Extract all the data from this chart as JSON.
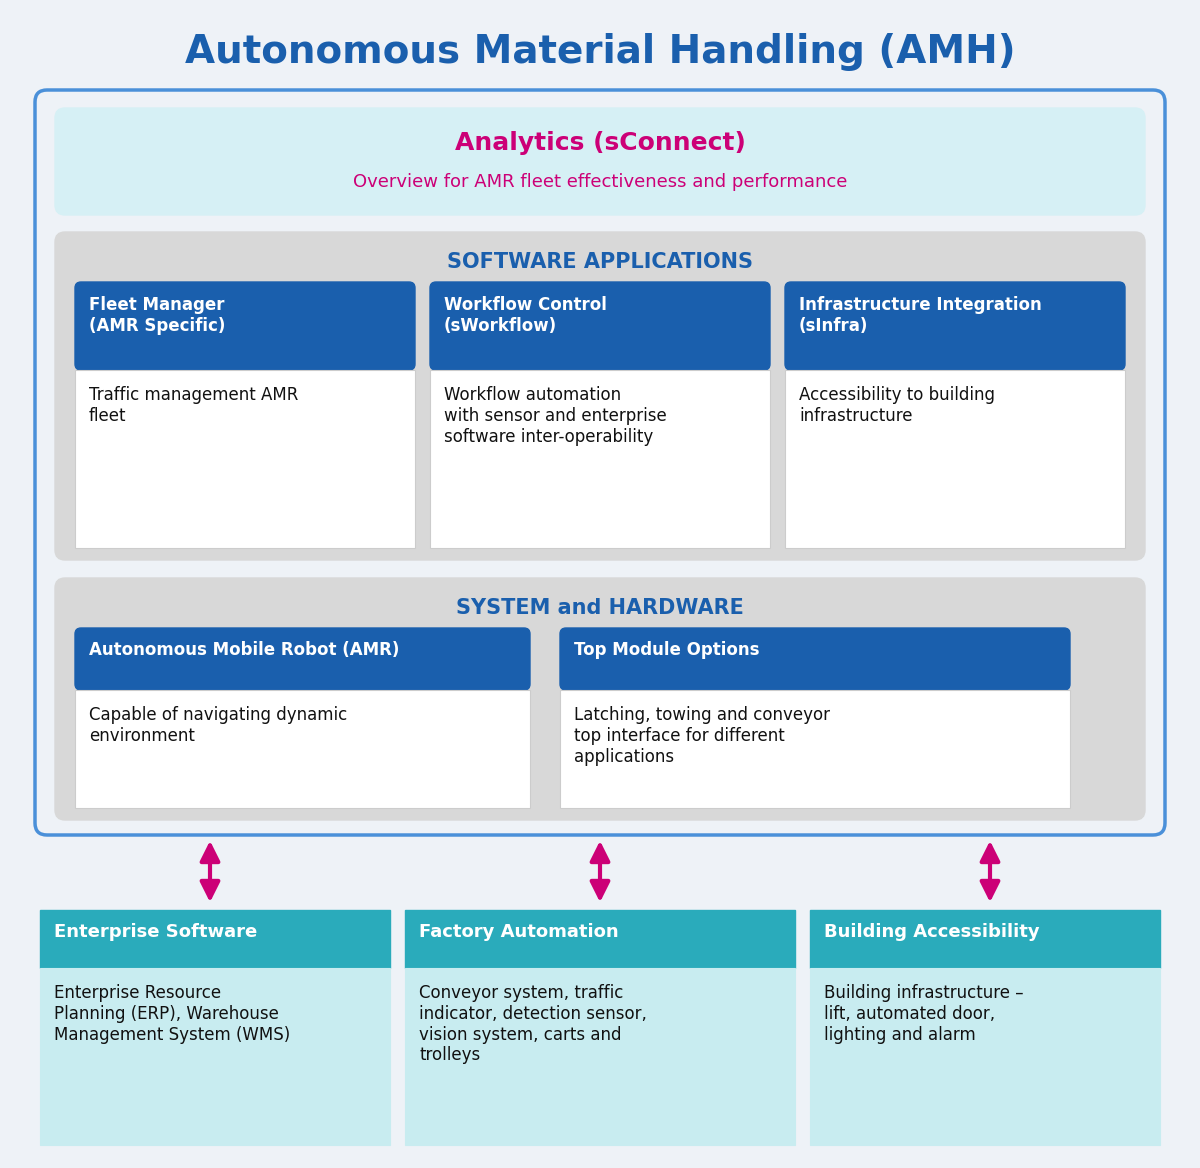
{
  "title": "Autonomous Material Handling (AMH)",
  "title_color": "#1a5fad",
  "bg_color": "#eef2f7",
  "outer_border_color": "#4a90d9",
  "outer_fill": "#eef2f7",
  "analytics_bg": "#d6f0f5",
  "analytics_title": "Analytics (sConnect)",
  "analytics_title_color": "#cc0077",
  "analytics_subtitle": "Overview for AMR fleet effectiveness and performance",
  "analytics_subtitle_color": "#cc0077",
  "sw_section_bg": "#d8d8d8",
  "sw_section_title": "SOFTWARE APPLICATIONS",
  "sw_section_title_color": "#1a5fad",
  "hw_section_bg": "#d8d8d8",
  "hw_section_title": "SYSTEM and HARDWARE",
  "hw_section_title_color": "#1a5fad",
  "blue_header_bg": "#1a5fad",
  "blue_header_text": "#ffffff",
  "teal_header_bg": "#2aabbb",
  "teal_header_text": "#ffffff",
  "teal_body_bg": "#c8ecf0",
  "white_body_bg": "#ffffff",
  "body_text_color": "#111111",
  "arrow_color": "#cc0077",
  "sw_boxes": [
    {
      "header": "Fleet Manager\n(AMR Specific)",
      "body": "Traffic management AMR\nfleet"
    },
    {
      "header": "Workflow Control\n(sWorkflow)",
      "body": "Workflow automation\nwith sensor and enterprise\nsoftware inter-operability"
    },
    {
      "header": "Infrastructure Integration\n(sInfra)",
      "body": "Accessibility to building\ninfrastructure"
    }
  ],
  "hw_boxes": [
    {
      "header": "Autonomous Mobile Robot (AMR)",
      "body": "Capable of navigating dynamic\nenvironment"
    },
    {
      "header": "Top Module Options",
      "body": "Latching, towing and conveyor\ntop interface for different\napplications"
    }
  ],
  "bottom_boxes": [
    {
      "header": "Enterprise Software",
      "body": "Enterprise Resource\nPlanning (ERP), Warehouse\nManagement System (WMS)"
    },
    {
      "header": "Factory Automation",
      "body": "Conveyor system, traffic\nindicator, detection sensor,\nvision system, carts and\ntrolleys"
    },
    {
      "header": "Building Accessibility",
      "body": "Building infrastructure –\nlift, automated door,\nlighting and alarm"
    }
  ]
}
